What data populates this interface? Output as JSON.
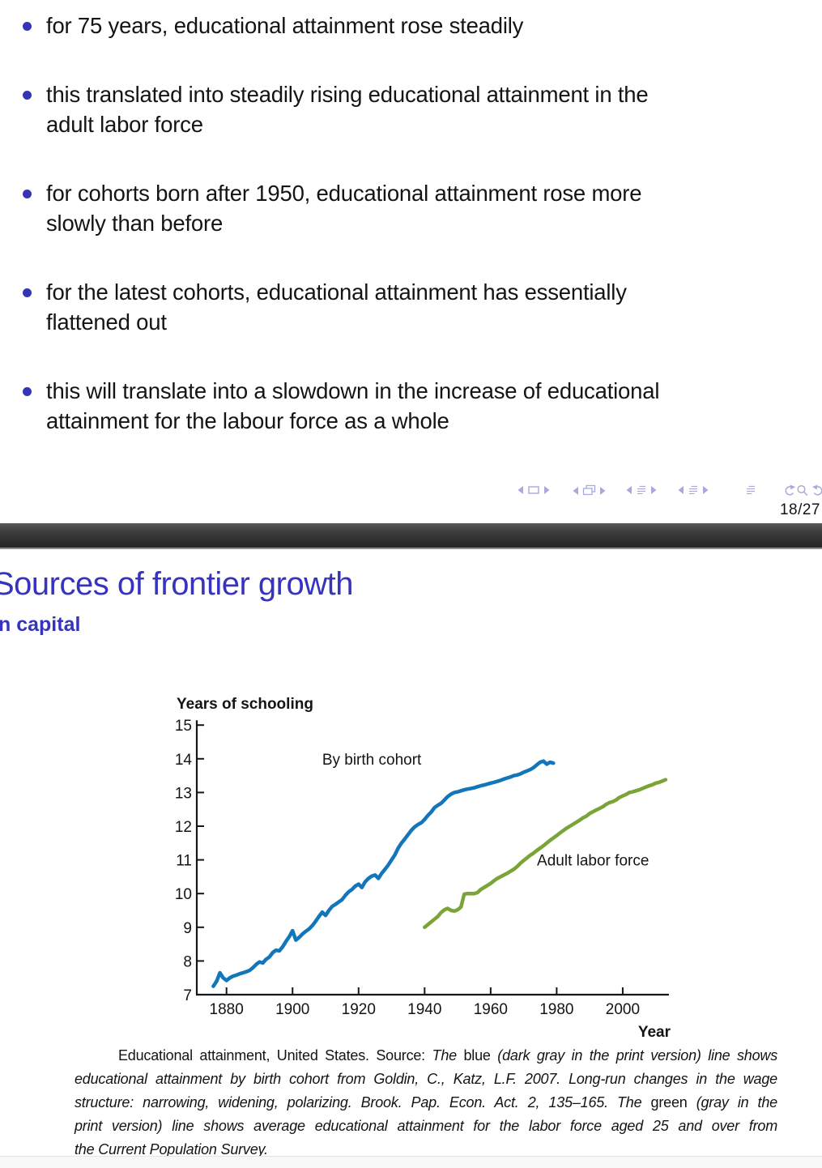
{
  "slide_top": {
    "bullets": [
      {
        "lines": [
          "for 75 years, educational attainment rose steadily"
        ]
      },
      {
        "lines": [
          "this translated into steadily rising educational attainment in the",
          "adult labor force"
        ]
      },
      {
        "lines": [
          "for cohorts born after 1950, educational attainment rose more",
          "slowly than before"
        ]
      },
      {
        "lines": [
          "for the latest cohorts, educational attainment has essentially",
          "flattened out"
        ]
      },
      {
        "lines": [
          "this will translate into a slowdown in the increase of educational",
          "attainment for the labour force as a whole"
        ]
      }
    ],
    "nav_icons": [
      "prev-slide",
      "slide-frame",
      "next-slide",
      "prev-frame",
      "frames",
      "next-frame",
      "prev-subsection",
      "subsection",
      "next-subsection",
      "prev-section",
      "section",
      "next-section",
      "appendix",
      "back",
      "search",
      "forward"
    ],
    "page_indicator": "18/27"
  },
  "slide_bottom": {
    "title": "Sources of frontier growth",
    "subtitle_visible": "n capital"
  },
  "chart_data": {
    "type": "line",
    "title": "Years of schooling",
    "xlabel": "Year",
    "ylabel": "Years of schooling",
    "xlim": [
      1871,
      2014
    ],
    "ylim": [
      7,
      15
    ],
    "x_ticks": [
      1880,
      1900,
      1920,
      1940,
      1960,
      1980,
      2000
    ],
    "y_ticks": [
      7,
      8,
      9,
      10,
      11,
      12,
      13,
      14,
      15
    ],
    "grid": false,
    "legend_position": "inline-annotations",
    "annotations": [
      {
        "text": "By birth cohort",
        "x": 1924,
        "y": 14.0
      },
      {
        "text": "Adult labor force",
        "x": 1991,
        "y": 11.0
      }
    ],
    "series": [
      {
        "name": "By birth cohort",
        "color": "#1375ba",
        "points": [
          [
            1876,
            7.25
          ],
          [
            1877,
            7.4
          ],
          [
            1878,
            7.65
          ],
          [
            1879,
            7.5
          ],
          [
            1880,
            7.42
          ],
          [
            1881,
            7.5
          ],
          [
            1882,
            7.55
          ],
          [
            1883,
            7.58
          ],
          [
            1884,
            7.62
          ],
          [
            1885,
            7.65
          ],
          [
            1886,
            7.68
          ],
          [
            1887,
            7.72
          ],
          [
            1888,
            7.8
          ],
          [
            1889,
            7.9
          ],
          [
            1890,
            7.97
          ],
          [
            1891,
            7.94
          ],
          [
            1892,
            8.05
          ],
          [
            1893,
            8.12
          ],
          [
            1894,
            8.25
          ],
          [
            1895,
            8.32
          ],
          [
            1896,
            8.3
          ],
          [
            1897,
            8.42
          ],
          [
            1898,
            8.58
          ],
          [
            1899,
            8.72
          ],
          [
            1900,
            8.9
          ],
          [
            1901,
            8.62
          ],
          [
            1902,
            8.7
          ],
          [
            1903,
            8.8
          ],
          [
            1904,
            8.88
          ],
          [
            1905,
            8.95
          ],
          [
            1906,
            9.05
          ],
          [
            1907,
            9.18
          ],
          [
            1908,
            9.32
          ],
          [
            1909,
            9.45
          ],
          [
            1910,
            9.35
          ],
          [
            1911,
            9.5
          ],
          [
            1912,
            9.62
          ],
          [
            1913,
            9.68
          ],
          [
            1914,
            9.75
          ],
          [
            1915,
            9.82
          ],
          [
            1916,
            9.95
          ],
          [
            1917,
            10.05
          ],
          [
            1918,
            10.12
          ],
          [
            1919,
            10.22
          ],
          [
            1920,
            10.28
          ],
          [
            1921,
            10.18
          ],
          [
            1922,
            10.35
          ],
          [
            1923,
            10.45
          ],
          [
            1924,
            10.52
          ],
          [
            1925,
            10.55
          ],
          [
            1926,
            10.45
          ],
          [
            1927,
            10.6
          ],
          [
            1928,
            10.72
          ],
          [
            1929,
            10.85
          ],
          [
            1930,
            11.0
          ],
          [
            1931,
            11.15
          ],
          [
            1932,
            11.35
          ],
          [
            1933,
            11.5
          ],
          [
            1934,
            11.62
          ],
          [
            1935,
            11.75
          ],
          [
            1936,
            11.88
          ],
          [
            1937,
            11.98
          ],
          [
            1938,
            12.05
          ],
          [
            1939,
            12.1
          ],
          [
            1940,
            12.2
          ],
          [
            1941,
            12.32
          ],
          [
            1942,
            12.42
          ],
          [
            1943,
            12.55
          ],
          [
            1944,
            12.62
          ],
          [
            1945,
            12.68
          ],
          [
            1946,
            12.78
          ],
          [
            1947,
            12.88
          ],
          [
            1948,
            12.95
          ],
          [
            1949,
            13.0
          ],
          [
            1950,
            13.02
          ],
          [
            1951,
            13.05
          ],
          [
            1952,
            13.08
          ],
          [
            1953,
            13.1
          ],
          [
            1954,
            13.12
          ],
          [
            1955,
            13.14
          ],
          [
            1956,
            13.17
          ],
          [
            1957,
            13.2
          ],
          [
            1958,
            13.22
          ],
          [
            1959,
            13.25
          ],
          [
            1960,
            13.28
          ],
          [
            1961,
            13.3
          ],
          [
            1962,
            13.33
          ],
          [
            1963,
            13.36
          ],
          [
            1964,
            13.4
          ],
          [
            1965,
            13.43
          ],
          [
            1966,
            13.46
          ],
          [
            1967,
            13.5
          ],
          [
            1968,
            13.52
          ],
          [
            1969,
            13.55
          ],
          [
            1970,
            13.6
          ],
          [
            1971,
            13.64
          ],
          [
            1972,
            13.68
          ],
          [
            1973,
            13.74
          ],
          [
            1974,
            13.82
          ],
          [
            1975,
            13.9
          ],
          [
            1976,
            13.93
          ],
          [
            1977,
            13.84
          ],
          [
            1978,
            13.9
          ],
          [
            1979,
            13.87
          ]
        ]
      },
      {
        "name": "Adult labor force",
        "color": "#7aa437",
        "points": [
          [
            1940,
            9.0
          ],
          [
            1941,
            9.08
          ],
          [
            1942,
            9.16
          ],
          [
            1943,
            9.24
          ],
          [
            1944,
            9.32
          ],
          [
            1945,
            9.44
          ],
          [
            1946,
            9.52
          ],
          [
            1947,
            9.56
          ],
          [
            1948,
            9.5
          ],
          [
            1949,
            9.48
          ],
          [
            1950,
            9.52
          ],
          [
            1951,
            9.6
          ],
          [
            1952,
            9.98
          ],
          [
            1953,
            10.0
          ],
          [
            1954,
            10.0
          ],
          [
            1955,
            10.0
          ],
          [
            1956,
            10.03
          ],
          [
            1957,
            10.12
          ],
          [
            1958,
            10.18
          ],
          [
            1959,
            10.24
          ],
          [
            1960,
            10.3
          ],
          [
            1961,
            10.38
          ],
          [
            1962,
            10.45
          ],
          [
            1963,
            10.5
          ],
          [
            1964,
            10.55
          ],
          [
            1965,
            10.6
          ],
          [
            1966,
            10.66
          ],
          [
            1967,
            10.72
          ],
          [
            1968,
            10.8
          ],
          [
            1969,
            10.9
          ],
          [
            1970,
            10.98
          ],
          [
            1971,
            11.06
          ],
          [
            1972,
            11.14
          ],
          [
            1973,
            11.2
          ],
          [
            1974,
            11.28
          ],
          [
            1975,
            11.35
          ],
          [
            1976,
            11.42
          ],
          [
            1977,
            11.5
          ],
          [
            1978,
            11.58
          ],
          [
            1979,
            11.65
          ],
          [
            1980,
            11.72
          ],
          [
            1981,
            11.8
          ],
          [
            1982,
            11.87
          ],
          [
            1983,
            11.94
          ],
          [
            1984,
            12.0
          ],
          [
            1985,
            12.06
          ],
          [
            1986,
            12.12
          ],
          [
            1987,
            12.18
          ],
          [
            1988,
            12.25
          ],
          [
            1989,
            12.3
          ],
          [
            1990,
            12.38
          ],
          [
            1991,
            12.43
          ],
          [
            1992,
            12.48
          ],
          [
            1993,
            12.53
          ],
          [
            1994,
            12.58
          ],
          [
            1995,
            12.65
          ],
          [
            1996,
            12.7
          ],
          [
            1997,
            12.73
          ],
          [
            1998,
            12.78
          ],
          [
            1999,
            12.85
          ],
          [
            2000,
            12.9
          ],
          [
            2001,
            12.94
          ],
          [
            2002,
            13.0
          ],
          [
            2003,
            13.02
          ],
          [
            2004,
            13.05
          ],
          [
            2005,
            13.08
          ],
          [
            2006,
            13.12
          ],
          [
            2007,
            13.16
          ],
          [
            2008,
            13.2
          ],
          [
            2009,
            13.23
          ],
          [
            2010,
            13.28
          ],
          [
            2011,
            13.3
          ],
          [
            2012,
            13.34
          ],
          [
            2013,
            13.38
          ]
        ]
      }
    ]
  },
  "caption": {
    "lines": [
      {
        "segments": [
          {
            "style": "roman",
            "text": "Educational attainment, United States. Source: "
          },
          {
            "style": "italic",
            "text": "The "
          },
          {
            "style": "roman",
            "text": "blue "
          },
          {
            "style": "italic",
            "text": "(dark gray in the print version) line shows"
          }
        ]
      },
      {
        "segments": [
          {
            "style": "italic",
            "text": "educational attainment by birth cohort from Goldin, C., Katz, L.F. 2007. Long-run changes in the wage"
          }
        ]
      },
      {
        "segments": [
          {
            "style": "italic",
            "text": "structure: narrowing, widening, polarizing. Brook. Pap. Econ. Act. 2, 135–165. The "
          },
          {
            "style": "roman",
            "text": "green "
          },
          {
            "style": "italic",
            "text": "(gray in the"
          }
        ]
      },
      {
        "segments": [
          {
            "style": "italic",
            "text": "print version) line shows average educational attainment for the labor force aged 25 and over from"
          }
        ]
      },
      {
        "segments": [
          {
            "style": "italic",
            "text": "the Current Population Survey."
          }
        ]
      }
    ]
  },
  "colors": {
    "accent_indigo": "#3633bf",
    "bullet_dot": "#3534b6",
    "line_blue": "#1375ba",
    "line_green": "#7aa437",
    "nav_lavender": "#a9a9dd",
    "separator_dark": "#2a2a2a"
  }
}
